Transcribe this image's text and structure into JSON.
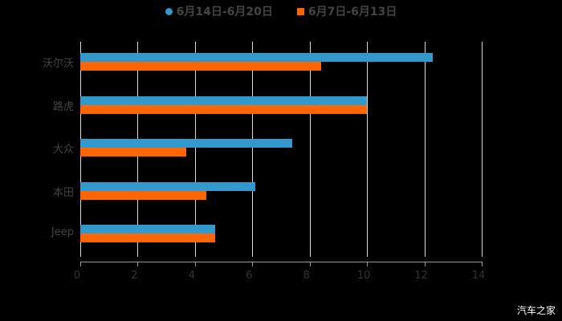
{
  "legend": [
    {
      "label": "6月14日-6月20日",
      "color": "#3399cc",
      "shape": "circle"
    },
    {
      "label": "6月7日-6月13日",
      "color": "#ff6600",
      "shape": "square"
    }
  ],
  "watermark": "汽车之家",
  "axis": {
    "ticks": [
      "0",
      "2",
      "4",
      "6",
      "8",
      "10",
      "12",
      "14"
    ]
  },
  "categories": [
    "沃尔沃",
    "路虎",
    "大众",
    "本田",
    "Jeep"
  ],
  "chart_data": {
    "type": "bar",
    "orientation": "horizontal",
    "title": "",
    "categories": [
      "沃尔沃",
      "路虎",
      "大众",
      "本田",
      "Jeep"
    ],
    "series": [
      {
        "name": "6月14日-6月20日",
        "color": "#3399cc",
        "values": [
          12.3,
          10.0,
          7.4,
          6.1,
          4.7
        ]
      },
      {
        "name": "6月7日-6月13日",
        "color": "#ff6600",
        "values": [
          8.4,
          10.0,
          3.7,
          4.4,
          4.7
        ]
      }
    ],
    "xlim": [
      0,
      14
    ],
    "xticks": [
      0,
      2,
      4,
      6,
      8,
      10,
      12,
      14
    ],
    "grid": true,
    "legend_position": "top"
  }
}
